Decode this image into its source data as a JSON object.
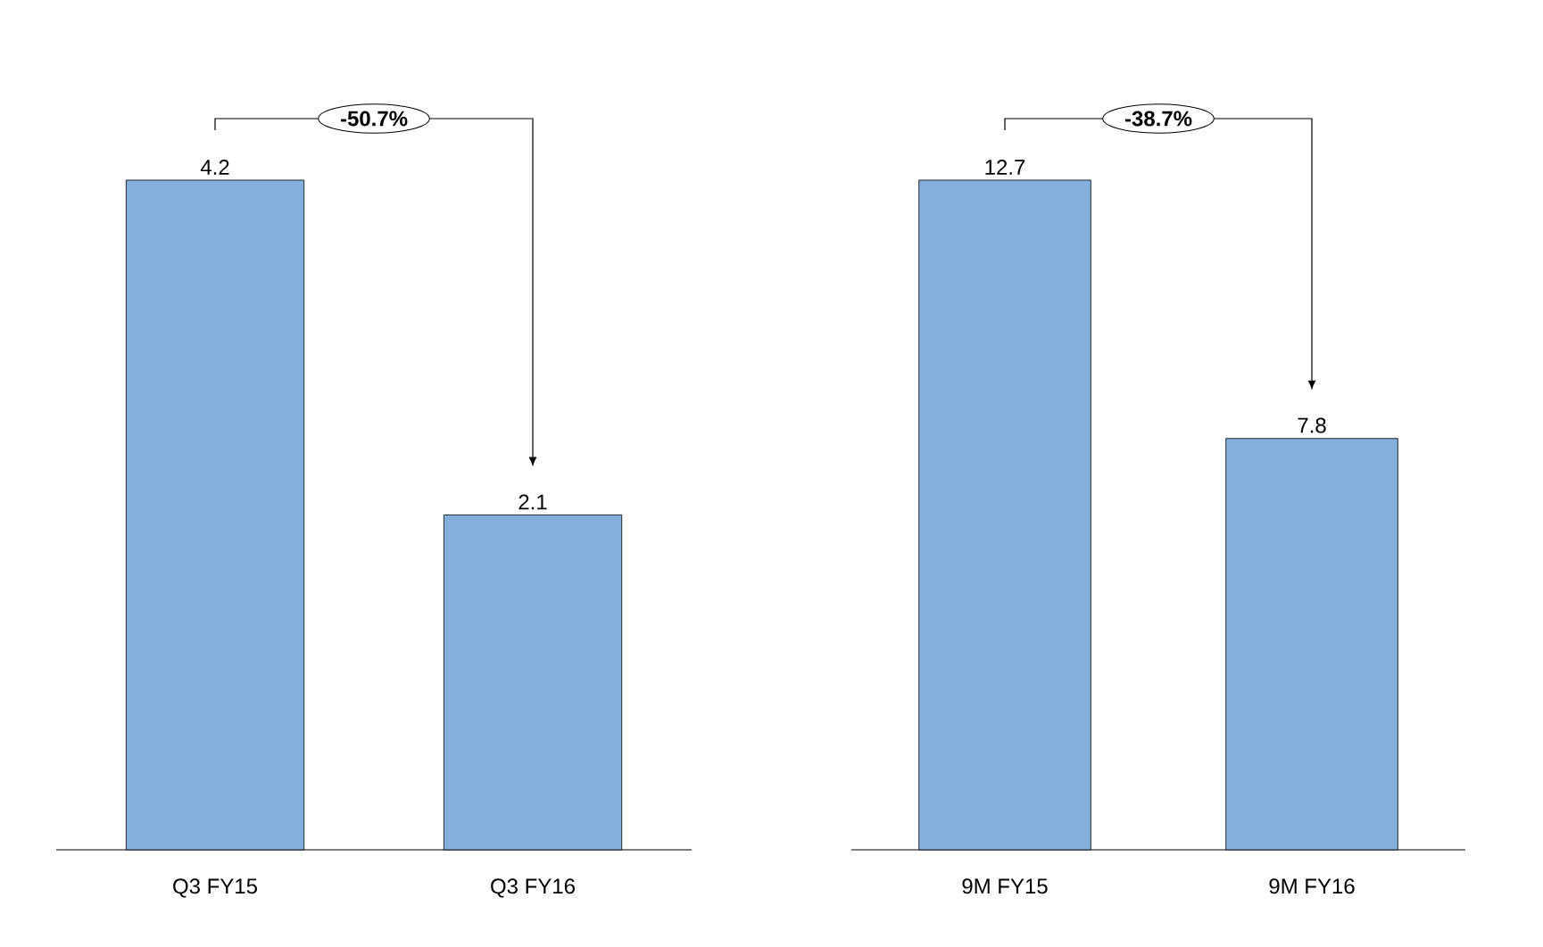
{
  "chart_data": [
    {
      "type": "bar",
      "categories": [
        "Q3 FY15",
        "Q3 FY16"
      ],
      "values": [
        4.2,
        2.1
      ],
      "color": "#83afdd",
      "data_labels": true,
      "annotations": [
        "-50.7%"
      ]
    },
    {
      "type": "bar",
      "categories": [
        "9M FY15",
        "9M FY16"
      ],
      "values": [
        12.7,
        7.8
      ],
      "color": "#83afdd",
      "data_labels": true,
      "annotations": [
        "-38.7%"
      ]
    }
  ]
}
